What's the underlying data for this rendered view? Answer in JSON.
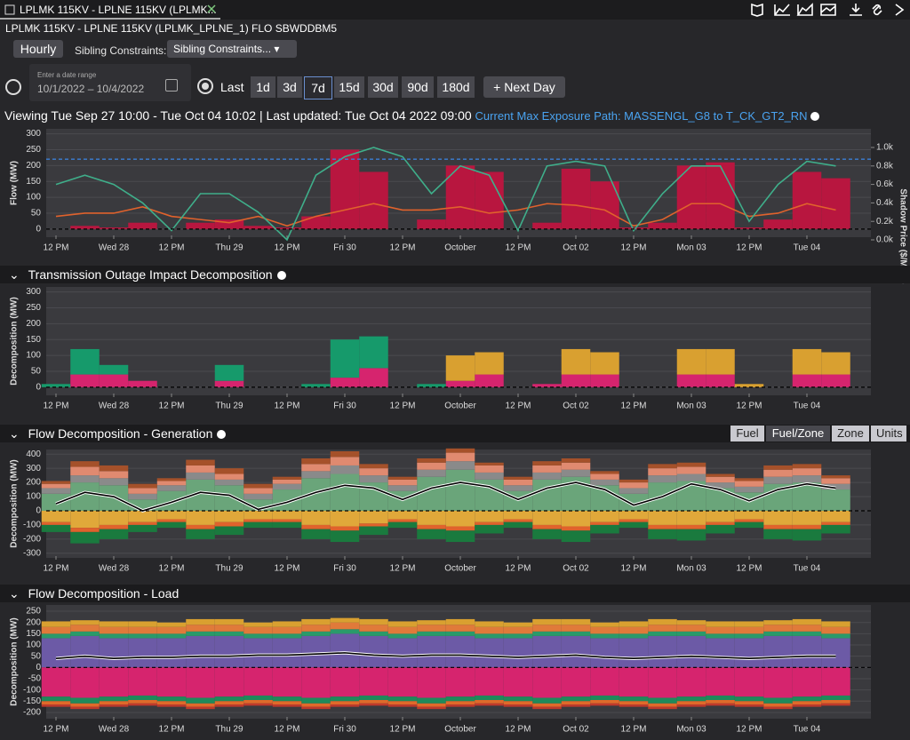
{
  "tab": {
    "title": "LPLMK 115KV - LPLNE 115KV (LPLMK..."
  },
  "constraint": "LPLMK 115KV - LPLNE 115KV (LPLMK_LPLNE_1) FLO SBWDDBM5",
  "controls": {
    "granularity": "Hourly",
    "sibling_label": "Sibling Constraints:",
    "sibling_select": "Sibling Constraints...",
    "date_range_label": "Enter a date range",
    "date_range": "10/1/2022 – 10/4/2022",
    "last_label": "Last",
    "ranges": [
      "1d",
      "3d",
      "7d",
      "15d",
      "30d",
      "90d",
      "180d"
    ],
    "selected_range": "7d",
    "next_day": "+ Next Day"
  },
  "status": {
    "viewing": "Viewing Tue Sep 27 10:00 - Tue Oct 04 10:02 | Last updated: Tue Oct 04 2022 09:00",
    "exposure_path": "Current Max Exposure Path: MASSENGL_G8 to T_CK_GT2_RN"
  },
  "panels": [
    {
      "title": "Transmission Outage Impact Decomposition"
    },
    {
      "title": "Flow Decomposition - Generation",
      "views": [
        "Fuel",
        "Fuel/Zone",
        "Zone",
        "Units"
      ],
      "selected_view": "Fuel/Zone"
    },
    {
      "title": "Flow Decomposition - Load"
    }
  ],
  "chart_data": [
    {
      "type": "combo",
      "ylabel": "Flow (MW)",
      "y2label": "Shadow Price ($/MWh)",
      "categories": [
        "12 PM",
        null,
        "Wed 28",
        null,
        "12 PM",
        null,
        "Thu 29",
        null,
        "12 PM",
        null,
        "Fri 30",
        null,
        "12 PM",
        null,
        "October",
        null,
        "12 PM",
        null,
        "Oct 02",
        null,
        "12 PM",
        null,
        "Mon 03",
        null,
        "12 PM",
        null,
        "Tue 04",
        null
      ],
      "ylim": [
        -20,
        310
      ],
      "yticks": [
        0,
        50,
        100,
        150,
        200,
        250,
        300
      ],
      "y2lim": [
        0,
        1180
      ],
      "y2ticks": [
        {
          "value": 0,
          "label": "0.0k"
        },
        {
          "value": 200,
          "label": "0.2k"
        },
        {
          "value": 400,
          "label": "0.4k"
        },
        {
          "value": 600,
          "label": "0.6k"
        },
        {
          "value": 800,
          "label": "0.8k"
        },
        {
          "value": 1000,
          "label": "1.0k"
        }
      ],
      "limit": 220,
      "zero_line": true,
      "series": [
        {
          "kind": "bar",
          "color": "#b8163f",
          "values": [
            0,
            10,
            5,
            20,
            0,
            20,
            30,
            10,
            5,
            40,
            250,
            180,
            0,
            30,
            200,
            180,
            0,
            20,
            190,
            150,
            5,
            20,
            200,
            210,
            5,
            30,
            180,
            160
          ]
        },
        {
          "kind": "line",
          "color": "#e0622c",
          "values": [
            40,
            50,
            50,
            70,
            40,
            30,
            20,
            40,
            10,
            40,
            60,
            80,
            60,
            60,
            70,
            50,
            60,
            80,
            75,
            60,
            10,
            30,
            80,
            80,
            40,
            50,
            80,
            60
          ]
        },
        {
          "kind": "line",
          "axis": "y2",
          "color": "#3fae8a",
          "values": [
            600,
            700,
            600,
            400,
            100,
            500,
            500,
            300,
            0,
            700,
            900,
            1000,
            900,
            500,
            800,
            700,
            100,
            800,
            850,
            800,
            100,
            500,
            800,
            800,
            200,
            600,
            850,
            800
          ]
        }
      ]
    },
    {
      "type": "stacked-bar",
      "ylabel": "Decomposition (MW)",
      "categories": [
        "12 PM",
        null,
        "Wed 28",
        null,
        "12 PM",
        null,
        "Thu 29",
        null,
        "12 PM",
        null,
        "Fri 30",
        null,
        "12 PM",
        null,
        "October",
        null,
        "12 PM",
        null,
        "Oct 02",
        null,
        "12 PM",
        null,
        "Mon 03",
        null,
        "12 PM",
        null,
        "Tue 04",
        null
      ],
      "ylim": [
        -20,
        310
      ],
      "yticks": [
        0,
        50,
        100,
        150,
        200,
        250,
        300
      ],
      "zero_line": true,
      "series": [
        {
          "kind": "bar",
          "color": "#d6246e",
          "values": [
            0,
            40,
            40,
            20,
            0,
            0,
            20,
            0,
            0,
            0,
            30,
            60,
            0,
            0,
            20,
            40,
            0,
            10,
            40,
            40,
            0,
            0,
            40,
            40,
            0,
            0,
            40,
            40
          ]
        },
        {
          "kind": "bar",
          "color": "#d9a030",
          "values": [
            0,
            0,
            0,
            0,
            0,
            0,
            0,
            0,
            0,
            0,
            0,
            0,
            0,
            0,
            80,
            70,
            0,
            0,
            80,
            70,
            0,
            0,
            80,
            80,
            10,
            0,
            80,
            70
          ]
        },
        {
          "kind": "bar",
          "color": "#169a6b",
          "values": [
            10,
            80,
            30,
            0,
            0,
            0,
            50,
            0,
            0,
            10,
            120,
            100,
            0,
            10,
            0,
            0,
            0,
            0,
            0,
            0,
            0,
            0,
            0,
            0,
            0,
            0,
            0,
            0
          ]
        }
      ]
    },
    {
      "type": "stacked-bar",
      "ylabel": "Decomposition (MW)",
      "categories": [
        "12 PM",
        null,
        "Wed 28",
        null,
        "12 PM",
        null,
        "Thu 29",
        null,
        "12 PM",
        null,
        "Fri 30",
        null,
        "12 PM",
        null,
        "October",
        null,
        "12 PM",
        null,
        "Oct 02",
        null,
        "12 PM",
        null,
        "Mon 03",
        null,
        "12 PM",
        null,
        "Tue 04",
        null
      ],
      "ylim": [
        -320,
        420
      ],
      "yticks": [
        -300,
        -200,
        -100,
        0,
        100,
        200,
        300,
        400
      ],
      "zero_line": true,
      "series": [
        {
          "kind": "bar",
          "color": "#6aa57a",
          "values": [
            120,
            200,
            180,
            80,
            140,
            220,
            180,
            80,
            150,
            230,
            260,
            200,
            140,
            240,
            290,
            220,
            140,
            220,
            240,
            180,
            120,
            200,
            210,
            160,
            130,
            190,
            200,
            150
          ]
        },
        {
          "kind": "bar",
          "color": "#8a8a8a",
          "values": [
            40,
            50,
            50,
            40,
            40,
            50,
            40,
            40,
            40,
            50,
            60,
            50,
            40,
            50,
            60,
            50,
            40,
            50,
            50,
            40,
            40,
            50,
            50,
            40,
            40,
            50,
            50,
            40
          ]
        },
        {
          "kind": "bar",
          "color": "#e08a70",
          "values": [
            30,
            60,
            50,
            40,
            30,
            50,
            40,
            40,
            30,
            50,
            60,
            50,
            40,
            50,
            60,
            50,
            40,
            50,
            50,
            40,
            40,
            50,
            50,
            40,
            40,
            50,
            50,
            40
          ]
        },
        {
          "kind": "bar",
          "color": "#a5512a",
          "values": [
            20,
            40,
            40,
            30,
            20,
            40,
            40,
            30,
            20,
            40,
            40,
            30,
            20,
            30,
            30,
            20,
            20,
            30,
            30,
            20,
            20,
            30,
            30,
            20,
            20,
            30,
            30,
            20
          ]
        },
        {
          "kind": "bar",
          "color": "#e0a83a",
          "values": [
            -80,
            -120,
            -100,
            -80,
            -60,
            -100,
            -80,
            -60,
            -60,
            -100,
            -110,
            -90,
            -60,
            -100,
            -110,
            -80,
            -60,
            -100,
            -110,
            -80,
            -60,
            -100,
            -100,
            -80,
            -60,
            -100,
            -100,
            -80
          ]
        },
        {
          "kind": "bar",
          "color": "#e0622c",
          "values": [
            -20,
            -30,
            -30,
            -20,
            -20,
            -30,
            -30,
            -20,
            -20,
            -30,
            -30,
            -20,
            -20,
            -30,
            -30,
            -20,
            -20,
            -30,
            -30,
            -20,
            -20,
            -30,
            -30,
            -20,
            -20,
            -30,
            -30,
            -20
          ]
        },
        {
          "kind": "bar",
          "color": "#1a7a3e",
          "values": [
            -50,
            -80,
            -70,
            -50,
            -40,
            -70,
            -60,
            -40,
            -40,
            -70,
            -80,
            -60,
            -40,
            -70,
            -80,
            -60,
            -40,
            -70,
            -80,
            -60,
            -40,
            -70,
            -80,
            -60,
            -40,
            -70,
            -80,
            -60
          ]
        },
        {
          "kind": "line",
          "color": "#000000",
          "values": [
            50,
            130,
            100,
            0,
            60,
            130,
            110,
            10,
            60,
            130,
            180,
            160,
            80,
            160,
            200,
            170,
            80,
            160,
            200,
            150,
            40,
            100,
            190,
            150,
            70,
            150,
            190,
            160
          ]
        }
      ]
    },
    {
      "type": "stacked-bar",
      "ylabel": "Decomposition (MW)",
      "categories": [
        "12 PM",
        null,
        "Wed 28",
        null,
        "12 PM",
        null,
        "Thu 29",
        null,
        "12 PM",
        null,
        "Fri 30",
        null,
        "12 PM",
        null,
        "October",
        null,
        "12 PM",
        null,
        "Oct 02",
        null,
        "12 PM",
        null,
        "Mon 03",
        null,
        "12 PM",
        null,
        "Tue 04",
        null
      ],
      "ylim": [
        -220,
        270
      ],
      "yticks": [
        -200,
        -150,
        -100,
        -50,
        0,
        50,
        100,
        150,
        200,
        250
      ],
      "zero_line": true,
      "series": [
        {
          "kind": "bar",
          "color": "#6c5aa6",
          "values": [
            130,
            140,
            130,
            130,
            130,
            140,
            140,
            130,
            130,
            140,
            150,
            140,
            130,
            140,
            140,
            130,
            130,
            140,
            140,
            130,
            130,
            140,
            140,
            130,
            130,
            140,
            140,
            130
          ]
        },
        {
          "kind": "bar",
          "color": "#2a9a6a",
          "values": [
            20,
            20,
            20,
            20,
            20,
            20,
            20,
            20,
            20,
            20,
            20,
            20,
            20,
            20,
            20,
            20,
            20,
            20,
            20,
            20,
            20,
            20,
            20,
            20,
            20,
            20,
            20,
            20
          ]
        },
        {
          "kind": "bar",
          "color": "#e07a3a",
          "values": [
            30,
            30,
            30,
            30,
            30,
            30,
            30,
            30,
            30,
            30,
            30,
            30,
            30,
            30,
            30,
            30,
            30,
            30,
            30,
            30,
            30,
            30,
            30,
            30,
            30,
            30,
            30,
            30
          ]
        },
        {
          "kind": "bar",
          "color": "#d9a030",
          "values": [
            25,
            20,
            25,
            25,
            20,
            25,
            25,
            20,
            25,
            25,
            20,
            25,
            25,
            20,
            25,
            25,
            20,
            25,
            25,
            20,
            25,
            25,
            20,
            25,
            25,
            20,
            25,
            25
          ]
        },
        {
          "kind": "bar",
          "color": "#d6246e",
          "values": [
            -130,
            -135,
            -130,
            -125,
            -130,
            -135,
            -130,
            -125,
            -130,
            -135,
            -130,
            -125,
            -130,
            -135,
            -130,
            -125,
            -130,
            -135,
            -130,
            -125,
            -130,
            -135,
            -130,
            -125,
            -130,
            -135,
            -130,
            -125
          ]
        },
        {
          "kind": "bar",
          "color": "#1f8a5a",
          "values": [
            -20,
            -25,
            -20,
            -20,
            -20,
            -25,
            -20,
            -20,
            -20,
            -25,
            -20,
            -20,
            -20,
            -25,
            -20,
            -20,
            -20,
            -25,
            -20,
            -20,
            -20,
            -25,
            -20,
            -20,
            -20,
            -25,
            -20,
            -20
          ]
        },
        {
          "kind": "bar",
          "color": "#e06a2a",
          "values": [
            -15,
            -15,
            -15,
            -15,
            -15,
            -15,
            -15,
            -15,
            -15,
            -15,
            -15,
            -15,
            -15,
            -15,
            -15,
            -15,
            -15,
            -15,
            -15,
            -15,
            -15,
            -15,
            -15,
            -15,
            -15,
            -15,
            -15,
            -15
          ]
        },
        {
          "kind": "bar",
          "color": "#c0392b",
          "values": [
            -10,
            -10,
            -10,
            -10,
            -10,
            -10,
            -10,
            -10,
            -10,
            -10,
            -10,
            -10,
            -10,
            -10,
            -10,
            -10,
            -10,
            -10,
            -10,
            -10,
            -10,
            -10,
            -10,
            -10,
            -10,
            -10,
            -10,
            -10
          ]
        },
        {
          "kind": "line",
          "color": "#000000",
          "values": [
            40,
            50,
            40,
            45,
            45,
            50,
            50,
            55,
            55,
            60,
            65,
            55,
            50,
            55,
            55,
            50,
            45,
            50,
            55,
            45,
            40,
            45,
            50,
            45,
            40,
            45,
            50,
            50
          ]
        }
      ]
    }
  ]
}
